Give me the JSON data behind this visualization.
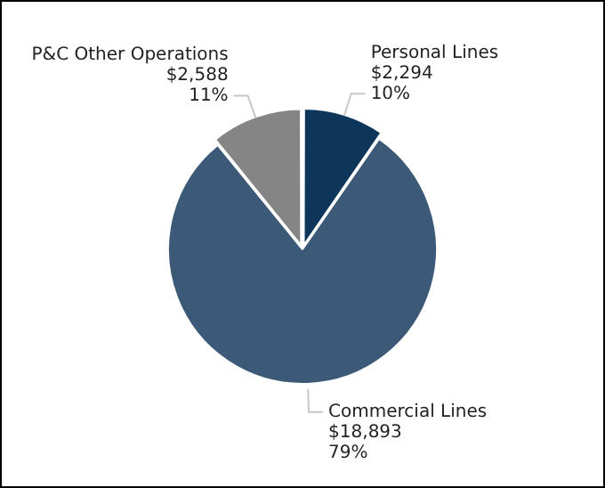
{
  "chart_data": {
    "type": "pie",
    "categories": [
      "Personal Lines",
      "Commercial Lines",
      "P&C Other Operations"
    ],
    "values": [
      2294,
      18893,
      2588
    ],
    "colors": [
      "#0d365a",
      "#3c5a78",
      "#858585"
    ],
    "value_labels": [
      "$2,294\n10%",
      "$18,893\n79%",
      "$2,588\n11%"
    ],
    "legend": false
  }
}
